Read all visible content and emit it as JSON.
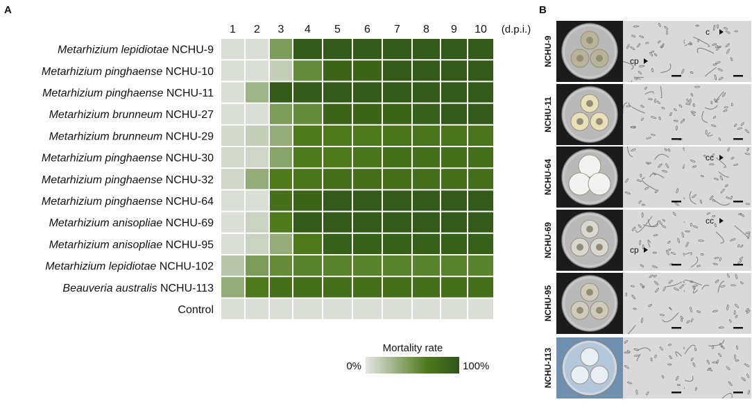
{
  "panel_a": {
    "letter": "A",
    "chart_data": {
      "type": "heatmap",
      "x_labels": [
        "1",
        "2",
        "3",
        "4",
        "5",
        "6",
        "7",
        "8",
        "9",
        "10"
      ],
      "x_unit": "(d.p.i.)",
      "rows": [
        {
          "genus": "Metarhizium",
          "species": "lepidiotae",
          "strain": "NCHU-9",
          "values": [
            0.05,
            0.05,
            0.45,
            0.95,
            0.95,
            0.95,
            0.95,
            0.95,
            0.95,
            0.95
          ]
        },
        {
          "genus": "Metarhizium",
          "species": "pinghaense",
          "strain": "NCHU-10",
          "values": [
            0.05,
            0.05,
            0.15,
            0.55,
            0.85,
            0.85,
            0.95,
            0.95,
            0.95,
            0.95
          ]
        },
        {
          "genus": "Metarhizium",
          "species": "pinghaense",
          "strain": "NCHU-11",
          "values": [
            0.05,
            0.3,
            0.95,
            0.95,
            0.95,
            0.95,
            0.95,
            0.95,
            0.95,
            0.95
          ]
        },
        {
          "genus": "Metarhizium",
          "species": "brunneum",
          "strain": "NCHU-27",
          "values": [
            0.05,
            0.05,
            0.45,
            0.55,
            0.85,
            0.85,
            0.85,
            0.9,
            0.95,
            0.95
          ]
        },
        {
          "genus": "Metarhizium",
          "species": "brunneum",
          "strain": "NCHU-29",
          "values": [
            0.08,
            0.15,
            0.35,
            0.65,
            0.65,
            0.65,
            0.7,
            0.7,
            0.7,
            0.7
          ]
        },
        {
          "genus": "Metarhizium",
          "species": "pinghaense",
          "strain": "NCHU-30",
          "values": [
            0.08,
            0.1,
            0.4,
            0.65,
            0.65,
            0.7,
            0.75,
            0.75,
            0.75,
            0.75
          ]
        },
        {
          "genus": "Metarhizium",
          "species": "pinghaense",
          "strain": "NCHU-32",
          "values": [
            0.1,
            0.35,
            0.65,
            0.7,
            0.75,
            0.75,
            0.75,
            0.75,
            0.75,
            0.75
          ]
        },
        {
          "genus": "Metarhizium",
          "species": "pinghaense",
          "strain": "NCHU-64",
          "values": [
            0.05,
            0.05,
            0.75,
            0.85,
            0.95,
            0.95,
            0.95,
            0.95,
            0.95,
            0.95
          ]
        },
        {
          "genus": "Metarhizium",
          "species": "anisopliae",
          "strain": "NCHU-69",
          "values": [
            0.05,
            0.12,
            0.65,
            0.95,
            0.95,
            0.95,
            0.95,
            0.95,
            0.95,
            0.95
          ]
        },
        {
          "genus": "Metarhizium",
          "species": "anisopliae",
          "strain": "NCHU-95",
          "values": [
            0.05,
            0.12,
            0.35,
            0.65,
            0.9,
            0.9,
            0.9,
            0.9,
            0.9,
            0.9
          ]
        },
        {
          "genus": "Metarhizium",
          "species": "lepidiotae",
          "strain": "NCHU-102",
          "values": [
            0.2,
            0.45,
            0.55,
            0.6,
            0.6,
            0.6,
            0.6,
            0.6,
            0.6,
            0.6
          ]
        },
        {
          "genus": "Beauveria",
          "species": "australis",
          "strain": "NCHU-113",
          "values": [
            0.35,
            0.65,
            0.75,
            0.75,
            0.75,
            0.75,
            0.75,
            0.75,
            0.75,
            0.75
          ]
        },
        {
          "genus": "",
          "species": "",
          "strain": "Control",
          "values": [
            0.05,
            0.05,
            0.05,
            0.05,
            0.05,
            0.05,
            0.05,
            0.05,
            0.05,
            0.05
          ]
        }
      ],
      "legend": {
        "title": "Mortality rate",
        "min_label": "0%",
        "max_label": "100%"
      },
      "colors": {
        "low": "#e6e6e6",
        "mid": "#4f7a1c",
        "high": "#2e5519"
      }
    }
  },
  "panel_b": {
    "letter": "B",
    "rows": [
      {
        "strain": "NCHU-9",
        "plate_type": "three",
        "m1_labels": [
          "cp"
        ],
        "m2_labels": [
          "c"
        ]
      },
      {
        "strain": "NCHU-11",
        "plate_type": "three",
        "m1_labels": [],
        "m2_labels": []
      },
      {
        "strain": "NCHU-64",
        "plate_type": "three",
        "m1_labels": [],
        "m2_labels": [
          "cc"
        ]
      },
      {
        "strain": "NCHU-69",
        "plate_type": "three",
        "m1_labels": [
          "cp"
        ],
        "m2_labels": [
          "cc"
        ]
      },
      {
        "strain": "NCHU-95",
        "plate_type": "three",
        "m1_labels": [],
        "m2_labels": []
      },
      {
        "strain": "NCHU-113",
        "plate_type": "three",
        "m1_labels": [],
        "m2_labels": []
      }
    ]
  }
}
